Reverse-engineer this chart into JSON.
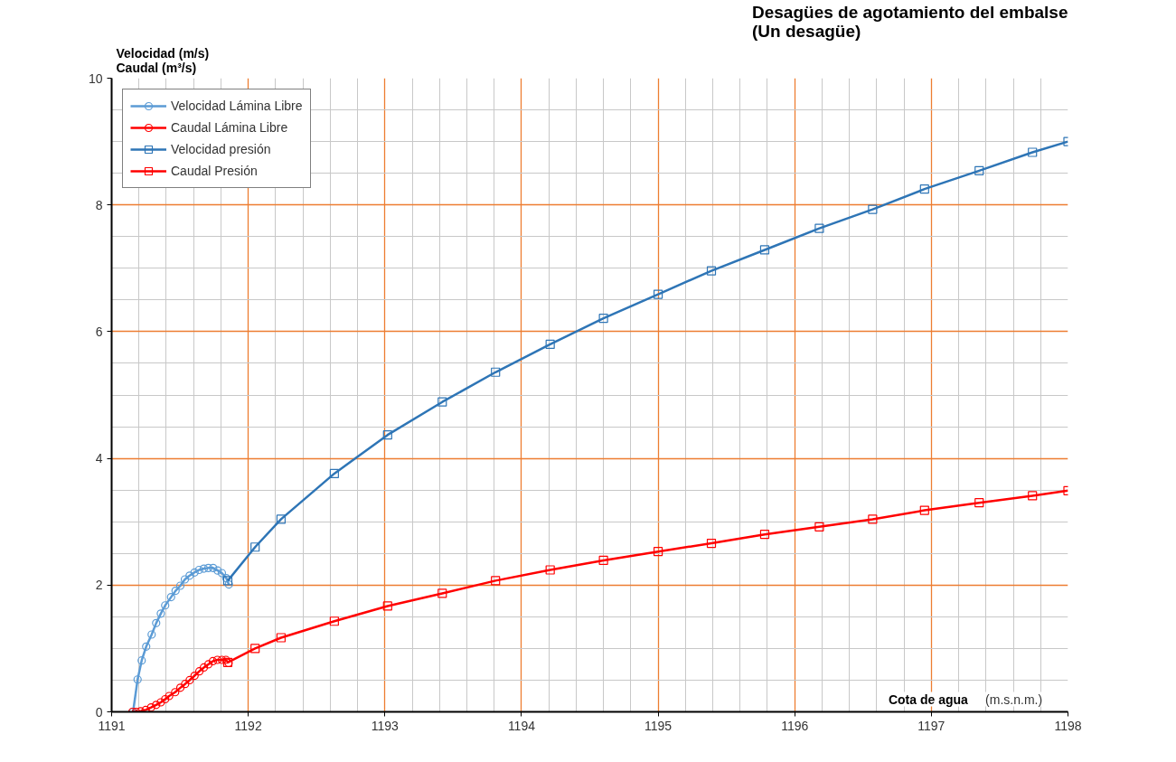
{
  "chart_data": {
    "type": "line",
    "title": "Desagües de agotamiento del embalse\n(Un desagüe)",
    "xlabel": "Cota de agua (m.s.n.m.)",
    "ylabel": "Velocidad (m/s)\nCaudal (m³/s)",
    "xlim": [
      1191,
      1198
    ],
    "ylim": [
      0,
      10
    ],
    "xticks": [
      1191,
      1192,
      1193,
      1194,
      1195,
      1196,
      1197,
      1198
    ],
    "yticks": [
      0,
      2,
      4,
      6,
      8,
      10
    ],
    "grid": true,
    "legend": "top left",
    "series": [
      {
        "name": "Velocidad Lámina Libre",
        "color": "#5b9bd5",
        "marker": "circle",
        "x": [
          1191.157,
          1191.19,
          1191.22,
          1191.253,
          1191.293,
          1191.326,
          1191.36,
          1191.392,
          1191.435,
          1191.468,
          1191.503,
          1191.536,
          1191.571,
          1191.607,
          1191.64,
          1191.675,
          1191.708,
          1191.743,
          1191.776,
          1191.807,
          1191.839,
          1191.858
        ],
        "values": [
          0,
          0.51,
          0.81,
          1.03,
          1.22,
          1.4,
          1.55,
          1.68,
          1.81,
          1.91,
          1.99,
          2.09,
          2.15,
          2.2,
          2.24,
          2.26,
          2.27,
          2.27,
          2.23,
          2.19,
          2.11,
          2.01
        ]
      },
      {
        "name": "Caudal Lámina Libre",
        "color": "#ff0000",
        "marker": "circle",
        "x": [
          1191.152,
          1191.179,
          1191.212,
          1191.249,
          1191.289,
          1191.326,
          1191.36,
          1191.392,
          1191.421,
          1191.465,
          1191.503,
          1191.538,
          1191.571,
          1191.607,
          1191.642,
          1191.675,
          1191.708,
          1191.741,
          1191.774,
          1191.807,
          1191.836,
          1191.856
        ],
        "values": [
          0,
          0,
          0.01,
          0.03,
          0.07,
          0.11,
          0.15,
          0.2,
          0.25,
          0.31,
          0.38,
          0.44,
          0.5,
          0.57,
          0.64,
          0.7,
          0.75,
          0.8,
          0.82,
          0.82,
          0.82,
          0.77
        ]
      },
      {
        "name": "Velocidad presión",
        "color": "#2e75b6",
        "marker": "square",
        "x": [
          1191.85,
          1192.05,
          1192.24,
          1192.63,
          1193.02,
          1193.42,
          1193.81,
          1194.21,
          1194.6,
          1195.0,
          1195.39,
          1195.78,
          1196.18,
          1196.57,
          1196.95,
          1197.35,
          1197.74,
          1198
        ],
        "values": [
          2.07,
          2.6,
          3.04,
          3.76,
          4.37,
          4.89,
          5.36,
          5.8,
          6.21,
          6.59,
          6.96,
          7.29,
          7.63,
          7.93,
          8.25,
          8.54,
          8.83,
          9.0
        ]
      },
      {
        "name": "Caudal Presión",
        "color": "#ff0000",
        "marker": "square",
        "x": [
          1191.85,
          1192.05,
          1192.24,
          1192.63,
          1193.02,
          1193.42,
          1193.81,
          1194.21,
          1194.6,
          1195.0,
          1195.39,
          1195.78,
          1196.18,
          1196.57,
          1196.95,
          1197.35,
          1197.74,
          1198
        ],
        "values": [
          0.78,
          1.0,
          1.17,
          1.43,
          1.67,
          1.87,
          2.07,
          2.24,
          2.39,
          2.53,
          2.66,
          2.8,
          2.92,
          3.04,
          3.18,
          3.3,
          3.41,
          3.49
        ]
      }
    ]
  }
}
